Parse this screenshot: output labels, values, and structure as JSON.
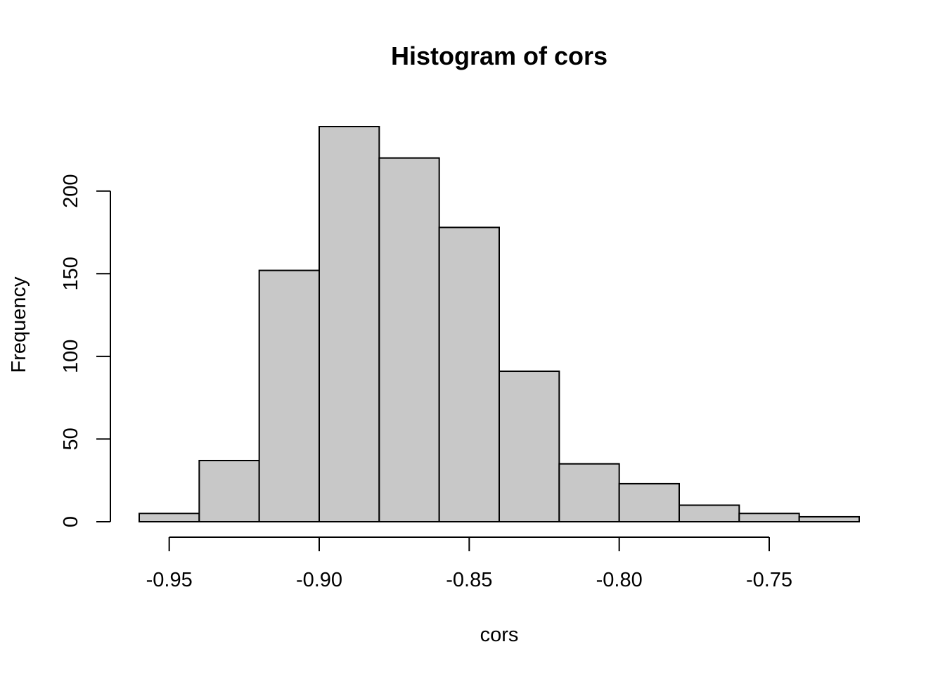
{
  "chart_data": {
    "type": "bar",
    "title": "Histogram of cors",
    "xlabel": "cors",
    "ylabel": "Frequency",
    "bins": [
      {
        "start": -0.96,
        "end": -0.94,
        "count": 5
      },
      {
        "start": -0.94,
        "end": -0.92,
        "count": 37
      },
      {
        "start": -0.92,
        "end": -0.9,
        "count": 152
      },
      {
        "start": -0.9,
        "end": -0.88,
        "count": 239
      },
      {
        "start": -0.88,
        "end": -0.86,
        "count": 220
      },
      {
        "start": -0.86,
        "end": -0.84,
        "count": 178
      },
      {
        "start": -0.84,
        "end": -0.82,
        "count": 91
      },
      {
        "start": -0.82,
        "end": -0.8,
        "count": 35
      },
      {
        "start": -0.8,
        "end": -0.78,
        "count": 23
      },
      {
        "start": -0.78,
        "end": -0.76,
        "count": 10
      },
      {
        "start": -0.76,
        "end": -0.74,
        "count": 5
      },
      {
        "start": -0.74,
        "end": -0.72,
        "count": 3
      }
    ],
    "xlim": [
      -0.96,
      -0.72
    ],
    "ylim": [
      0,
      239
    ],
    "x_ticks": [
      -0.95,
      -0.9,
      -0.85,
      -0.8,
      -0.75
    ],
    "x_tick_labels": [
      "-0.95",
      "-0.90",
      "-0.85",
      "-0.80",
      "-0.75"
    ],
    "y_ticks": [
      0,
      50,
      100,
      150,
      200
    ],
    "y_tick_labels": [
      "0",
      "50",
      "100",
      "150",
      "200"
    ],
    "bar_color": "#c8c8c8",
    "grid": false
  }
}
